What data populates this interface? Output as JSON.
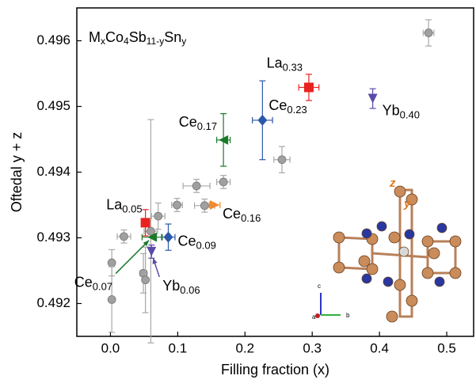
{
  "chart_data": {
    "type": "scatter",
    "title_parts": [
      "M",
      "x",
      "Co",
      "4",
      "Sb",
      "11-y",
      "Sn",
      "y"
    ],
    "x_label": "Filling fraction (x)",
    "y_label": "Oftedal y + z",
    "xlim": [
      -0.05,
      0.54
    ],
    "ylim": [
      0.4915,
      0.4965
    ],
    "xticks": [
      {
        "value": 0,
        "label": "0.0"
      },
      0.1,
      0.2,
      0.3,
      0.4,
      0.5
    ],
    "yticks": [
      0.492,
      0.493,
      0.494,
      0.495,
      0.496
    ],
    "series": [
      {
        "color": "#a0a0a0",
        "marker": "circle",
        "x": [
          0.473,
          0.255,
          0.168,
          0.128,
          0.099,
          0.14,
          0.071,
          0.02,
          0.06,
          0.002,
          0.049,
          0.052,
          0.002
        ],
        "values": [
          0.49612,
          0.49419,
          0.49385,
          0.49379,
          0.4935,
          0.49349,
          0.49333,
          0.49302,
          0.4931,
          0.49262,
          0.49246,
          0.49236,
          0.49206
        ],
        "xerr": [
          0.008,
          0.012,
          0.01,
          0.02,
          0.008,
          0.015,
          0.01,
          0.01,
          0.01,
          0,
          0.005,
          0,
          0
        ],
        "yerr": [
          0.0002,
          0.0002,
          0.0001,
          0.0001,
          0.0001,
          0.0001,
          0.0002,
          0.0001,
          0.0017,
          0.0002,
          0.0003,
          0.0005,
          0.0005
        ]
      },
      {
        "name": "La",
        "sub": "0.33",
        "color": "#e8221e",
        "marker": "square",
        "x": [
          0.295
        ],
        "values": [
          0.49529
        ],
        "xerr": [
          0.015
        ],
        "yerr": [
          0.0002
        ]
      },
      {
        "name": "Yb",
        "sub": "0.40",
        "color": "#5a4aa8",
        "marker": "tri-down",
        "x": [
          0.39
        ],
        "values": [
          0.49512
        ],
        "xerr": [
          0
        ],
        "yerr": [
          0.00015
        ]
      },
      {
        "name": "Ce",
        "sub": "0.23",
        "color": "#2c58a8",
        "marker": "diamond",
        "x": [
          0.226
        ],
        "values": [
          0.49479
        ],
        "xerr": [
          0.015
        ],
        "yerr": [
          0.0006
        ]
      },
      {
        "name": "Ce",
        "sub": "0.17",
        "color": "#1a7a2a",
        "marker": "tri-left",
        "x": [
          0.168
        ],
        "values": [
          0.49449
        ],
        "xerr": [
          0.01
        ],
        "yerr": [
          0.0004
        ]
      },
      {
        "name": "Ce",
        "sub": "0.16",
        "color": "#f08a30",
        "marker": "tri-right",
        "x": [
          0.155
        ],
        "values": [
          0.4935
        ],
        "xerr": [
          0.008
        ],
        "yerr": [
          0
        ]
      },
      {
        "name": "La",
        "sub": "0.05",
        "color": "#e8221e",
        "marker": "square",
        "x": [
          0.052
        ],
        "values": [
          0.49323
        ],
        "xerr": [
          0
        ],
        "yerr": [
          0.0002
        ]
      },
      {
        "name": "Ce",
        "sub": "0.09",
        "color": "#2c58a8",
        "marker": "diamond",
        "x": [
          0.086
        ],
        "values": [
          0.49301
        ],
        "xerr": [
          0.01
        ],
        "yerr": [
          0.0002
        ]
      },
      {
        "name": "Ce",
        "sub": "0.07",
        "color": "#1a7a2a",
        "marker": "tri-left",
        "x": [
          0.062
        ],
        "values": [
          0.49301
        ],
        "xerr": [
          0.015
        ],
        "yerr": [
          0
        ]
      },
      {
        "name": "Yb",
        "sub": "0.06",
        "color": "#5a4aa8",
        "marker": "tri-down",
        "x": [
          0.061
        ],
        "values": [
          0.49279
        ],
        "xerr": [
          0
        ],
        "yerr": [
          0.0001
        ]
      }
    ],
    "inset": {
      "labels": [
        "z",
        "y"
      ],
      "axes": [
        "c",
        "a",
        "b"
      ]
    }
  }
}
